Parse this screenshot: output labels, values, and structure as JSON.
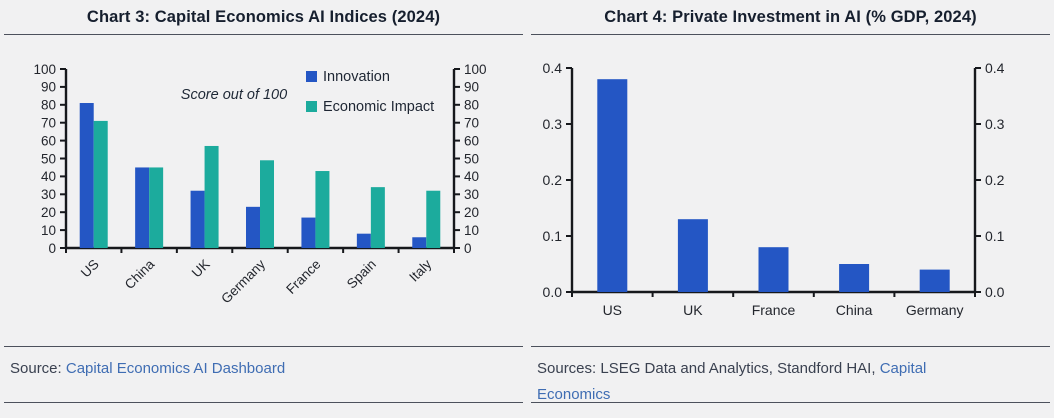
{
  "page": {
    "background": "#f1f1f2"
  },
  "panels": [
    {
      "title": "Chart 3: Capital Economics AI Indices (2024)",
      "source": {
        "prefix": "Source: ",
        "link": "Capital Economics AI Dashboard"
      }
    },
    {
      "title": "Chart 4: Private Investment in AI (% GDP, 2024)",
      "source": {
        "prefix": "Sources: LSEG Data and Analytics, Standford HAI, ",
        "link": "Capital Economics"
      }
    }
  ],
  "colors": {
    "innovation_blue": "#2456c4",
    "economic_impact_teal": "#1cab9d",
    "bar_blue": "#2456c4",
    "link_blue": "#3f6db3",
    "axis": "#16181c",
    "tick_text": "#23262d",
    "rule_line": "#4c515c"
  },
  "chart_data": [
    {
      "type": "bar",
      "title": "Chart 3: Capital Economics AI Indices (2024)",
      "categories": [
        "US",
        "China",
        "UK",
        "Germany",
        "France",
        "Spain",
        "Italy"
      ],
      "series": [
        {
          "name": "Innovation",
          "color": "#2456c4",
          "values": [
            81,
            45,
            32,
            23,
            17,
            8,
            6
          ]
        },
        {
          "name": "Economic Impact",
          "color": "#1cab9d",
          "values": [
            71,
            45,
            57,
            49,
            43,
            34,
            32
          ]
        }
      ],
      "annotation": "Score out of 100",
      "xlabel": "",
      "ylabel": "",
      "ylim": [
        0,
        100
      ],
      "yticks": [
        0,
        10,
        20,
        30,
        40,
        50,
        60,
        70,
        80,
        90,
        100
      ],
      "dual_axis": true,
      "grid": false,
      "legend": true,
      "legend_position": "top-right-inside",
      "xlabel_rotation": -45
    },
    {
      "type": "bar",
      "title": "Chart 4: Private Investment in AI (% GDP, 2024)",
      "categories": [
        "US",
        "UK",
        "France",
        "China",
        "Germany"
      ],
      "values": [
        0.38,
        0.13,
        0.08,
        0.05,
        0.04
      ],
      "bar_color": "#2456c4",
      "xlabel": "",
      "ylabel": "",
      "ylim": [
        0,
        0.4
      ],
      "yticks": [
        "0.0",
        "0.1",
        "0.2",
        "0.3",
        "0.4"
      ],
      "dual_axis": true,
      "grid": false,
      "legend": false,
      "xlabel_rotation": 0
    }
  ]
}
